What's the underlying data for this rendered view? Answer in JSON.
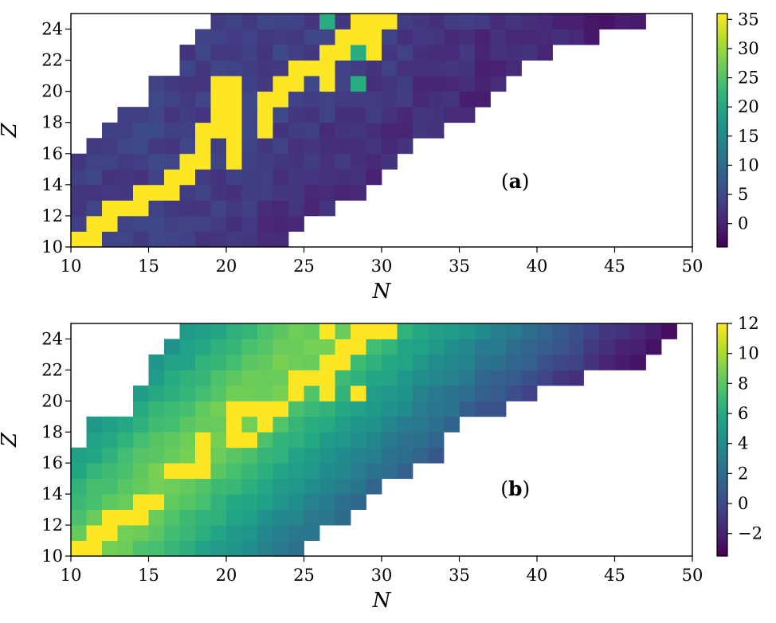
{
  "chart_data": [
    {
      "type": "heatmap",
      "panel_label": "a",
      "xlabel": "N",
      "ylabel": "Z",
      "xlim": [
        10,
        50
      ],
      "ylim": [
        10,
        25
      ],
      "x_ticks": [
        10,
        15,
        20,
        25,
        30,
        35,
        40,
        45,
        50
      ],
      "y_ticks": [
        10,
        12,
        14,
        16,
        18,
        20,
        22,
        24
      ],
      "colormap": "viridis",
      "colorbar": {
        "vmin": -4,
        "vmax": 36,
        "ticks": [
          0,
          5,
          10,
          15,
          20,
          25,
          30,
          35
        ]
      },
      "yellow_cells": [
        [
          10,
          10
        ],
        [
          11,
          10
        ],
        [
          11,
          11
        ],
        [
          12,
          11
        ],
        [
          12,
          12
        ],
        [
          13,
          12
        ],
        [
          14,
          12
        ],
        [
          14,
          13
        ],
        [
          15,
          13
        ],
        [
          16,
          13
        ],
        [
          16,
          14
        ],
        [
          17,
          14
        ],
        [
          17,
          15
        ],
        [
          18,
          15
        ],
        [
          18,
          16
        ],
        [
          18,
          17
        ],
        [
          19,
          17
        ],
        [
          19,
          18
        ],
        [
          19,
          19
        ],
        [
          19,
          20
        ],
        [
          20,
          15
        ],
        [
          20,
          16
        ],
        [
          20,
          17
        ],
        [
          20,
          18
        ],
        [
          20,
          19
        ],
        [
          20,
          20
        ],
        [
          22,
          17
        ],
        [
          22,
          18
        ],
        [
          22,
          19
        ],
        [
          23,
          19
        ],
        [
          23,
          20
        ],
        [
          24,
          20
        ],
        [
          24,
          21
        ],
        [
          25,
          21
        ],
        [
          26,
          21
        ],
        [
          26,
          22
        ],
        [
          27,
          22
        ],
        [
          27,
          23
        ],
        [
          28,
          23
        ],
        [
          28,
          24
        ],
        [
          29,
          24
        ],
        [
          30,
          24
        ],
        [
          26,
          20
        ],
        [
          29,
          22
        ],
        [
          29,
          23
        ]
      ],
      "teal_cells": [
        [
          26,
          24
        ],
        [
          28,
          20
        ],
        [
          28,
          22
        ],
        [
          27,
          23
        ]
      ],
      "rows": [
        {
          "z": 10,
          "n_min": 10,
          "n_max": 23,
          "gaps": []
        },
        {
          "z": 11,
          "n_min": 10,
          "n_max": 24,
          "gaps": []
        },
        {
          "z": 12,
          "n_min": 10,
          "n_max": 26,
          "gaps": []
        },
        {
          "z": 13,
          "n_min": 10,
          "n_max": 28,
          "gaps": []
        },
        {
          "z": 14,
          "n_min": 10,
          "n_max": 29,
          "gaps": []
        },
        {
          "z": 15,
          "n_min": 10,
          "n_max": 30,
          "gaps": []
        },
        {
          "z": 16,
          "n_min": 11,
          "n_max": 31,
          "gaps": []
        },
        {
          "z": 17,
          "n_min": 12,
          "n_max": 33,
          "gaps": []
        },
        {
          "z": 18,
          "n_min": 13,
          "n_max": 35,
          "gaps": []
        },
        {
          "z": 19,
          "n_min": 15,
          "n_max": 36,
          "gaps": []
        },
        {
          "z": 20,
          "n_min": 15,
          "n_max": 37,
          "gaps": []
        },
        {
          "z": 21,
          "n_min": 17,
          "n_max": 38,
          "gaps": []
        },
        {
          "z": 22,
          "n_min": 17,
          "n_max": 40,
          "gaps": []
        },
        {
          "z": 23,
          "n_min": 18,
          "n_max": 43,
          "gaps": []
        },
        {
          "z": 24,
          "n_min": 19,
          "n_max": 46,
          "gaps": []
        }
      ]
    },
    {
      "type": "heatmap",
      "panel_label": "b",
      "xlabel": "N",
      "ylabel": "Z",
      "xlim": [
        10,
        50
      ],
      "ylim": [
        10,
        25
      ],
      "x_ticks": [
        10,
        15,
        20,
        25,
        30,
        35,
        40,
        45,
        50
      ],
      "y_ticks": [
        10,
        12,
        14,
        16,
        18,
        20,
        22,
        24
      ],
      "colormap": "viridis",
      "colorbar": {
        "vmin": -3.5,
        "vmax": 12,
        "ticks": [
          -2,
          0,
          2,
          4,
          6,
          8,
          10,
          12
        ]
      },
      "yellow_cells": [
        [
          10,
          10
        ],
        [
          11,
          10
        ],
        [
          11,
          11
        ],
        [
          12,
          11
        ],
        [
          12,
          12
        ],
        [
          13,
          12
        ],
        [
          14,
          12
        ],
        [
          14,
          13
        ],
        [
          15,
          13
        ],
        [
          16,
          15
        ],
        [
          17,
          15
        ],
        [
          18,
          15
        ],
        [
          18,
          16
        ],
        [
          18,
          17
        ],
        [
          20,
          17
        ],
        [
          20,
          18
        ],
        [
          20,
          19
        ],
        [
          21,
          19
        ],
        [
          22,
          19
        ],
        [
          23,
          19
        ],
        [
          24,
          20
        ],
        [
          24,
          21
        ],
        [
          25,
          21
        ],
        [
          26,
          21
        ],
        [
          26,
          22
        ],
        [
          27,
          22
        ],
        [
          27,
          23
        ],
        [
          28,
          23
        ],
        [
          28,
          24
        ],
        [
          29,
          24
        ],
        [
          30,
          24
        ],
        [
          26,
          24
        ],
        [
          28,
          20
        ],
        [
          26,
          20
        ],
        [
          22,
          18
        ],
        [
          21,
          17
        ]
      ],
      "rows": [
        {
          "z": 10,
          "n_min": 10,
          "n_max": 24,
          "gaps": []
        },
        {
          "z": 11,
          "n_min": 10,
          "n_max": 25,
          "gaps": []
        },
        {
          "z": 12,
          "n_min": 10,
          "n_max": 27,
          "gaps": []
        },
        {
          "z": 13,
          "n_min": 10,
          "n_max": 28,
          "gaps": []
        },
        {
          "z": 14,
          "n_min": 10,
          "n_max": 29,
          "gaps": []
        },
        {
          "z": 15,
          "n_min": 10,
          "n_max": 31,
          "gaps": []
        },
        {
          "z": 16,
          "n_min": 10,
          "n_max": 33,
          "gaps": []
        },
        {
          "z": 17,
          "n_min": 11,
          "n_max": 33,
          "gaps": []
        },
        {
          "z": 18,
          "n_min": 11,
          "n_max": 34,
          "gaps": []
        },
        {
          "z": 19,
          "n_min": 14,
          "n_max": 37,
          "gaps": []
        },
        {
          "z": 20,
          "n_min": 14,
          "n_max": 39,
          "gaps": []
        },
        {
          "z": 21,
          "n_min": 15,
          "n_max": 42,
          "gaps": []
        },
        {
          "z": 22,
          "n_min": 15,
          "n_max": 46,
          "gaps": []
        },
        {
          "z": 23,
          "n_min": 16,
          "n_max": 47,
          "gaps": []
        },
        {
          "z": 24,
          "n_min": 17,
          "n_max": 48,
          "gaps": []
        }
      ]
    }
  ]
}
